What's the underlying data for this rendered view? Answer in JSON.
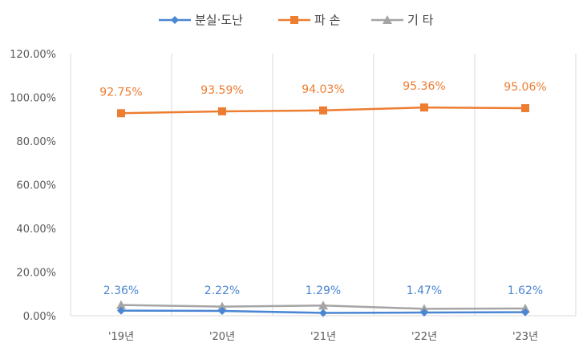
{
  "chart_data": {
    "type": "line",
    "title": "",
    "xlabel": "",
    "ylabel": "",
    "categories": [
      "'19년",
      "'20년",
      "'21년",
      "'22년",
      "'23년"
    ],
    "ylim": [
      0,
      120
    ],
    "yticks": [
      0,
      20,
      40,
      60,
      80,
      100,
      120
    ],
    "ytick_labels": [
      "0.00%",
      "20.00%",
      "40.00%",
      "60.00%",
      "80.00%",
      "100.00%",
      "120.00%"
    ],
    "grid": "vertical",
    "legend_position": "top",
    "series": [
      {
        "name": "분실·도난",
        "color": "#4a86d3",
        "marker": "diamond",
        "values": [
          2.36,
          2.22,
          1.29,
          1.47,
          1.62
        ],
        "labels": [
          "2.36%",
          "2.22%",
          "1.29%",
          "1.47%",
          "1.62%"
        ]
      },
      {
        "name": "파 손",
        "color": "#ed7d31",
        "marker": "square",
        "values": [
          92.75,
          93.59,
          94.03,
          95.36,
          95.06
        ],
        "labels": [
          "92.75%",
          "93.59%",
          "94.03%",
          "95.36%",
          "95.06%"
        ]
      },
      {
        "name": "기 타",
        "color": "#a5a5a5",
        "marker": "triangle",
        "values": [
          4.89,
          4.19,
          4.68,
          3.17,
          3.32
        ],
        "labels": []
      }
    ]
  }
}
